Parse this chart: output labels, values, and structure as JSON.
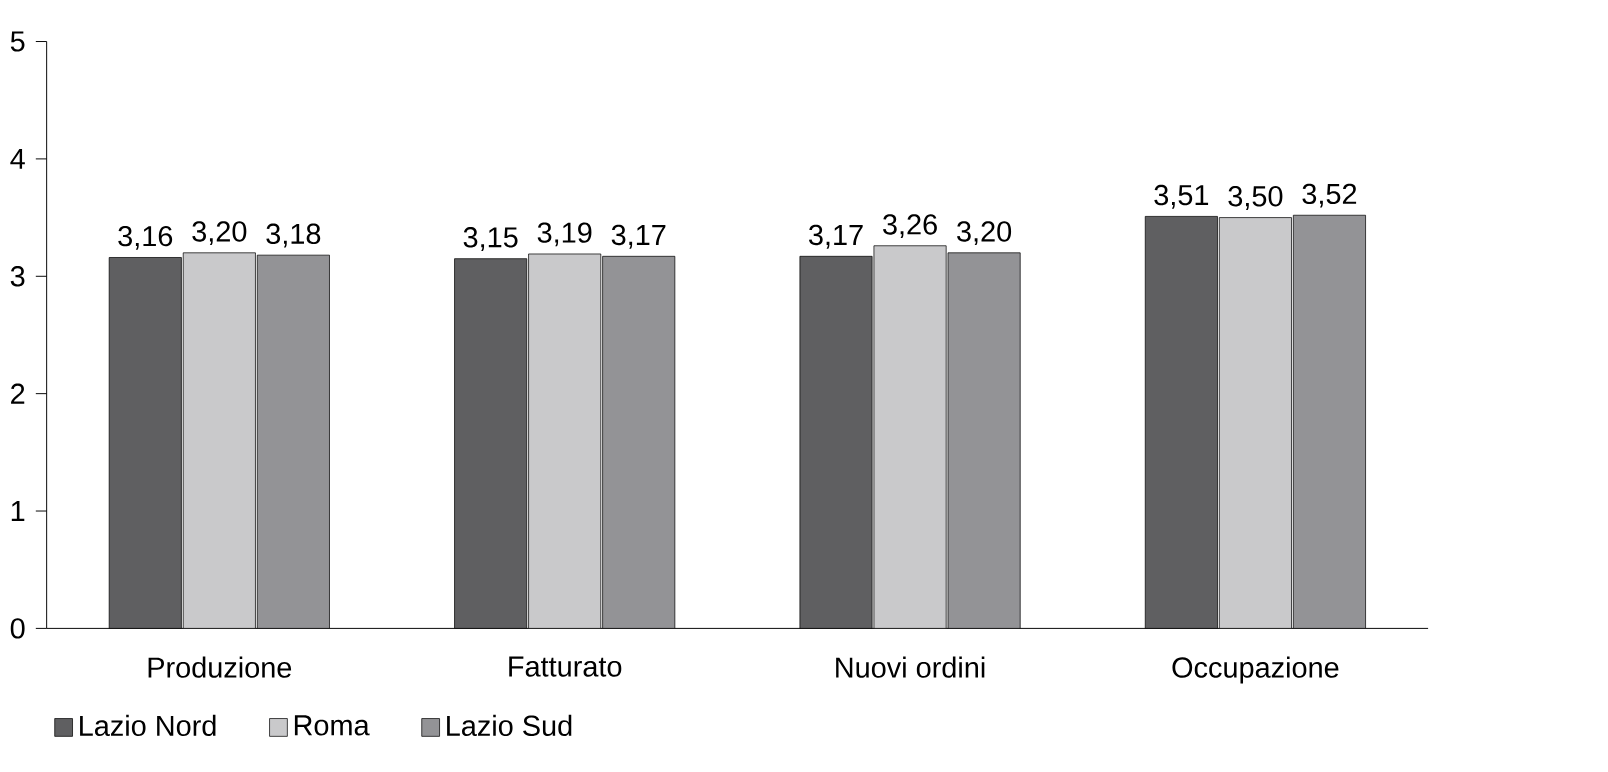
{
  "chart_data": {
    "type": "bar",
    "categories": [
      "Produzione",
      "Fatturato",
      "Nuovi ordini",
      "Occupazione"
    ],
    "series": [
      {
        "name": "Lazio Nord",
        "color": "#5f5f61",
        "values": [
          3.16,
          3.15,
          3.17,
          3.51
        ],
        "value_labels": [
          "3,16",
          "3,15",
          "3,17",
          "3,51"
        ]
      },
      {
        "name": "Roma",
        "color": "#c9c9cb",
        "values": [
          3.2,
          3.19,
          3.26,
          3.5
        ],
        "value_labels": [
          "3,20",
          "3,19",
          "3,26",
          "3,50"
        ]
      },
      {
        "name": "Lazio Sud",
        "color": "#939396",
        "values": [
          3.18,
          3.17,
          3.2,
          3.52
        ],
        "value_labels": [
          "3,18",
          "3,17",
          "3,20",
          "3,52"
        ]
      }
    ],
    "ylim": [
      0,
      5
    ],
    "yticks": [
      0,
      1,
      2,
      3,
      4,
      5
    ],
    "grid": false,
    "legend": "bottom left"
  }
}
